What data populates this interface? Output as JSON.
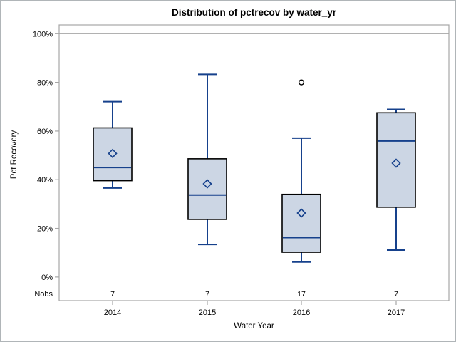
{
  "figure": {
    "background": "#ffffff",
    "border_color": "#b0b5b8"
  },
  "chart_data": {
    "type": "box",
    "title": "Distribution of pctrecov by water_yr",
    "xlabel": "Water Year",
    "ylabel": "Pct Recovery",
    "categories": [
      "2014",
      "2015",
      "2016",
      "2017"
    ],
    "y_ticks": [
      {
        "value": 0,
        "label": "0%"
      },
      {
        "value": 20,
        "label": "20%"
      },
      {
        "value": 40,
        "label": "40%"
      },
      {
        "value": 60,
        "label": "60%"
      },
      {
        "value": 80,
        "label": "80%"
      },
      {
        "value": 100,
        "label": "100%"
      }
    ],
    "ylim": [
      -9.7,
      103.6
    ],
    "refline": 100,
    "grid": false,
    "legend": "none",
    "nobs_label": "Nobs",
    "nobs": [
      "7",
      "7",
      "17",
      "7"
    ],
    "series": [
      {
        "category": "2014",
        "whisker_low": 36.6,
        "q1": 39.6,
        "median": 45.0,
        "q3": 61.3,
        "whisker_high": 72.1,
        "mean": 50.8,
        "outliers": []
      },
      {
        "category": "2015",
        "whisker_low": 13.4,
        "q1": 23.7,
        "median": 33.7,
        "q3": 48.6,
        "whisker_high": 83.3,
        "mean": 38.3,
        "outliers": []
      },
      {
        "category": "2016",
        "whisker_low": 6.2,
        "q1": 10.2,
        "median": 16.2,
        "q3": 34.0,
        "whisker_high": 57.1,
        "mean": 26.3,
        "outliers": [
          80.0
        ]
      },
      {
        "category": "2017",
        "whisker_low": 11.1,
        "q1": 28.7,
        "median": 55.9,
        "q3": 67.5,
        "whisker_high": 68.9,
        "mean": 46.8,
        "outliers": []
      }
    ],
    "colors": {
      "box_fill": "#ccd6e4",
      "box_border": "#000000",
      "whisker": "#16418c",
      "median": "#16418c",
      "mean_marker": "#16418c",
      "outlier": "#000000",
      "frame": "#a6a6a6",
      "text": "#000000"
    }
  }
}
